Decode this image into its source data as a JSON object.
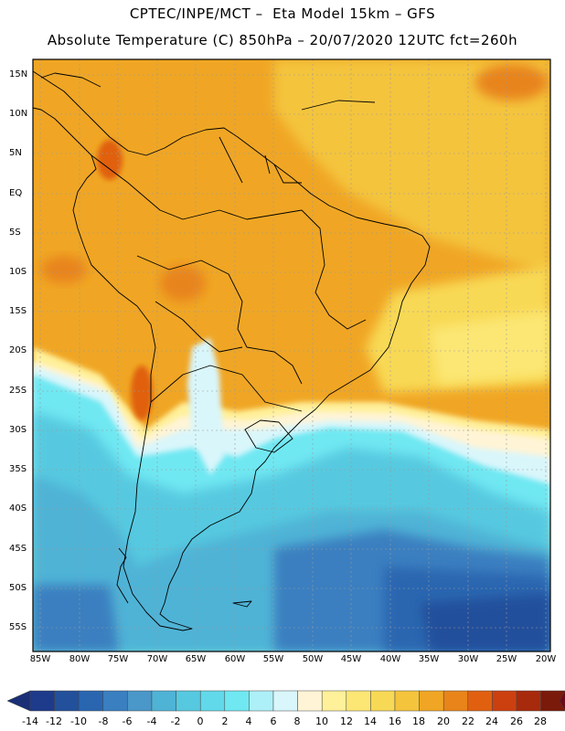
{
  "header": {
    "title_line1": "CPTEC/INPE/MCT –  Eta Model 15km – GFS",
    "title_line2": "Absolute Temperature (C) 850hPa – 20/07/2020 12UTC fct=260h"
  },
  "map": {
    "lat_labels": [
      "15N",
      "10N",
      "5N",
      "EQ",
      "5S",
      "10S",
      "15S",
      "20S",
      "25S",
      "30S",
      "35S",
      "40S",
      "45S",
      "50S",
      "55S"
    ],
    "lon_labels": [
      "85W",
      "80W",
      "75W",
      "70W",
      "65W",
      "60W",
      "55W",
      "50W",
      "45W",
      "40W",
      "35W",
      "30W",
      "25W",
      "20W"
    ]
  },
  "colorbar": {
    "labels": [
      "-14",
      "-12",
      "-10",
      "-8",
      "-6",
      "-4",
      "-2",
      "0",
      "2",
      "4",
      "6",
      "8",
      "10",
      "12",
      "14",
      "16",
      "18",
      "20",
      "22",
      "24",
      "26",
      "28"
    ],
    "colors": [
      "#1e3a8a",
      "#22509b",
      "#2a66b0",
      "#3a7fc0",
      "#4a97c9",
      "#4fb3d6",
      "#56c9e0",
      "#62d9ea",
      "#6fe8f2",
      "#aef0f8",
      "#d9f6fb",
      "#fff4d6",
      "#fff09a",
      "#fce775",
      "#f8d955",
      "#f4c43c",
      "#f0a624",
      "#e8841a",
      "#e06010",
      "#cc4010",
      "#a82a0c",
      "#7a1a0a"
    ],
    "left_cap_color": "#1a2f75",
    "right_cap_color": "#6a0a1a"
  }
}
